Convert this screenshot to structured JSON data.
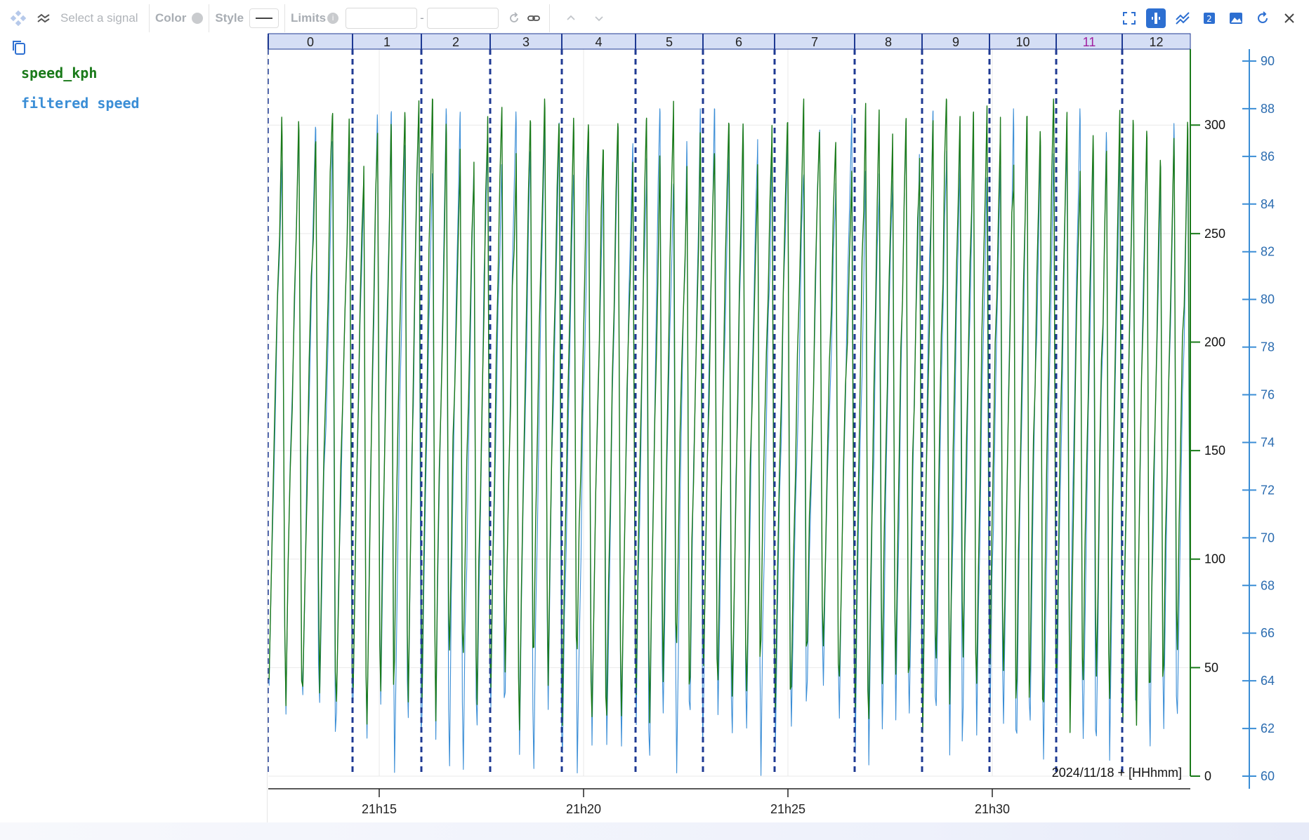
{
  "toolbar": {
    "select_signal_placeholder": "Select a signal",
    "color_label": "Color",
    "style_label": "Style",
    "limits_label": "Limits",
    "limit_min": "",
    "limit_max": "",
    "range_dash": "-"
  },
  "legend": {
    "items": [
      {
        "label": "speed_kph",
        "color": "#1a7a1a"
      },
      {
        "label": "filtered speed",
        "color": "#3b8ed6"
      }
    ]
  },
  "laps": {
    "labels": [
      "0",
      "1",
      "2",
      "3",
      "4",
      "5",
      "6",
      "7",
      "8",
      "9",
      "10",
      "11",
      "12"
    ],
    "highlighted_index": 11,
    "highlight_color": "#a020a0"
  },
  "chart_data": {
    "type": "line",
    "x_axis": {
      "tick_labels": [
        "21h15",
        "21h20",
        "21h25",
        "21h30"
      ],
      "format_label": "2024/11/18 + [HHhmm]"
    },
    "y_axis_left": {
      "ticks": [
        0,
        50,
        100,
        150,
        200,
        250,
        300
      ],
      "color": "#1a7a1a",
      "range": [
        0,
        335
      ]
    },
    "y_axis_right": {
      "ticks": [
        60,
        62,
        64,
        66,
        68,
        70,
        72,
        74,
        76,
        78,
        80,
        82,
        84,
        86,
        88,
        90
      ],
      "color": "#3b8ed6",
      "range": [
        60,
        90.5
      ]
    },
    "series": [
      {
        "name": "speed_kph",
        "color": "#1a7a1a",
        "axis": "left",
        "cycle_min": 20,
        "cycle_max": 312,
        "cycles_per_lap": 5
      },
      {
        "name": "filtered speed",
        "color": "#3b8ed6",
        "axis": "right",
        "cycle_min": 60,
        "cycle_max": 88,
        "cycles_per_lap": 5
      }
    ],
    "grid": true
  },
  "colors": {
    "lap_divider": "#1f3a93",
    "lap_header_bg": "#d5def5",
    "grid": "#e9e9e9"
  }
}
